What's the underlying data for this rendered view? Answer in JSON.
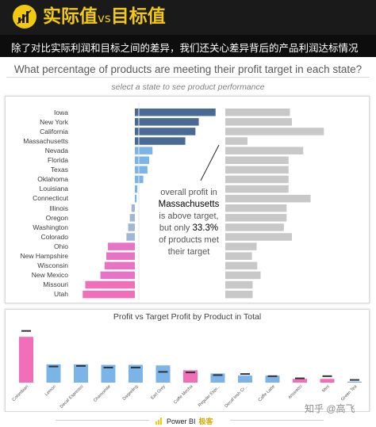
{
  "header": {
    "title_part1": "实际值",
    "title_vs": "vs",
    "title_part2": "目标值",
    "logo": "power-bi-icon",
    "subtitle": "除了对比实际利润和目标之间的差异，我们还关心差异背后的产品利润达标情况"
  },
  "question": "What percentage of products are meeting their profit target in each state?",
  "hint": "select a state to see product performance",
  "colors": {
    "header_bg": "#1a1a1a",
    "title_yellow": "#f2c811",
    "dark_blue": "#4a6a96",
    "light_blue": "#7ab4e8",
    "pink": "#e773c7",
    "hot_pink": "#f06fb8",
    "gray": "#c8c8c8",
    "target_mark": "#333333"
  },
  "annotation": {
    "line1": "overall profit in",
    "state": "Massachusetts",
    "line3": "is above target,",
    "line4_pre": "but only ",
    "pct": "33.3%",
    "line5": "of products met",
    "line6": "their target"
  },
  "chart_data": [
    {
      "type": "bar",
      "orientation": "horizontal",
      "title": "",
      "categories": [
        "Iowa",
        "New York",
        "California",
        "Massachusetts",
        "Nevada",
        "Florida",
        "Texas",
        "Oklahoma",
        "Louisiana",
        "Connecticut",
        "Illinois",
        "Oregon",
        "Washington",
        "Colorado",
        "Ohio",
        "New Hampshire",
        "Wisconsin",
        "New Mexico",
        "Missouri",
        "Utah"
      ],
      "series": [
        {
          "values": [
            9.6,
            7.6,
            7.2,
            6.0,
            2.1,
            1.7,
            1.5,
            1.0,
            0.3,
            0.2,
            -0.4,
            -0.6,
            -0.8,
            -1.0,
            -3.2,
            -3.4,
            -3.6,
            -4.1,
            -5.9,
            -6.2
          ]
        },
        {
          "values": [
            97,
            100,
            148,
            33.3,
            117,
            95,
            95,
            95,
            95,
            128,
            92,
            92,
            88,
            100,
            47,
            40,
            48,
            53,
            41,
            41
          ]
        }
      ],
      "xlim": [
        -7,
        10
      ]
    },
    {
      "type": "bar",
      "title": "Profit vs Target Profit by Product in Total",
      "categories": [
        "Colombian",
        "Lemon",
        "Decaf Espresso",
        "Chamomile",
        "Darjeeling",
        "Earl Grey",
        "Caffe Mocha",
        "Regular Espr...",
        "Decaf Irish Cr...",
        "Caffe Latte",
        "Amaretto",
        "Mint",
        "Green Tea"
      ],
      "series": [
        {
          "name": "Profit",
          "values": [
            85,
            34,
            34,
            33,
            33,
            32,
            23,
            17,
            13,
            13,
            7,
            7,
            2
          ]
        },
        {
          "name": "Target",
          "values": [
            96,
            30,
            31,
            28,
            28,
            20,
            19,
            14,
            16,
            12,
            8,
            12,
            5
          ]
        }
      ],
      "ylim": [
        0,
        100
      ]
    }
  ],
  "footer": {
    "brand": "Power BI",
    "brand_accent": "极客"
  },
  "watermark": "知乎 @高飞"
}
